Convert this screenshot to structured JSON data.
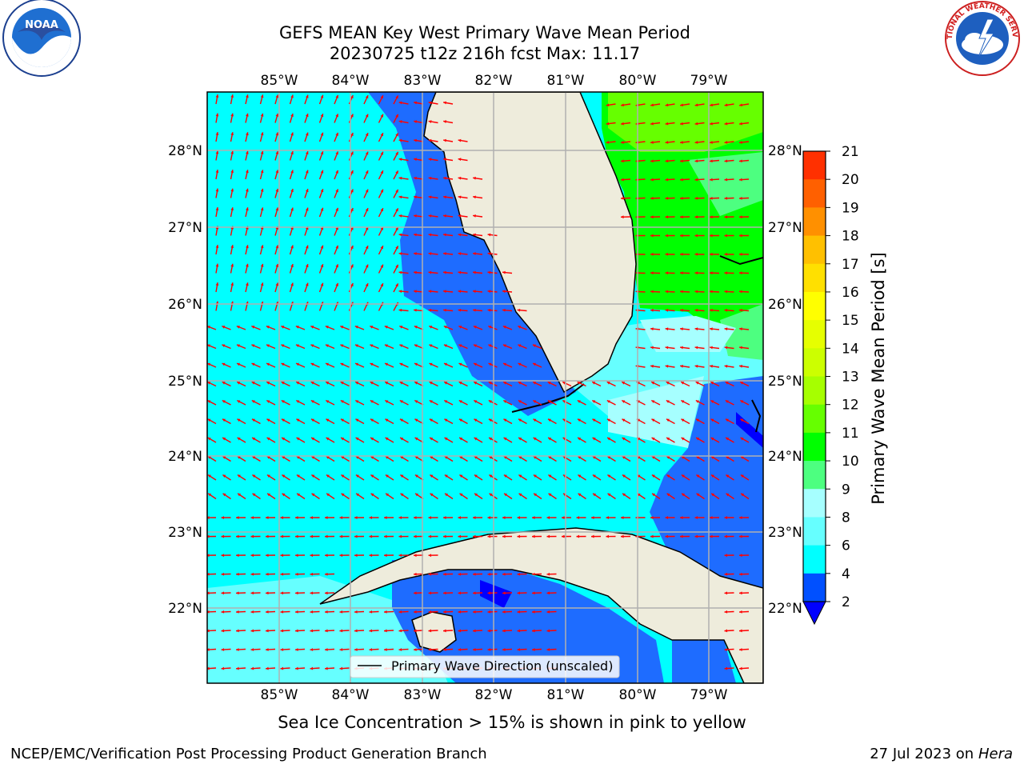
{
  "title_line1": "GEFS MEAN Key West Primary Wave Mean Period",
  "title_line2": "20230725 t12z 216h fcst   Max: 11.17",
  "logos": {
    "left": "NOAA",
    "right": "NATIONAL WEATHER SERVICE"
  },
  "map": {
    "lon_ticks": [
      "85°W",
      "84°W",
      "83°W",
      "82°W",
      "81°W",
      "80°W",
      "79°W"
    ],
    "lat_ticks": [
      "28°N",
      "27°N",
      "26°N",
      "25°N",
      "24°N",
      "23°N",
      "22°N"
    ],
    "legend_label": "Primary Wave Direction (unscaled)",
    "colors": {
      "land": "#eeecdc",
      "cyan": "#00ffff",
      "light_cyan": "#66ffff",
      "pale_cyan": "#a6ffff",
      "blue": "#1e6cff",
      "green": "#00ff00",
      "light_green": "#66ff66",
      "arrow": "#ff0000"
    }
  },
  "colorbar": {
    "label": "Primary Wave Mean Period [s]",
    "ticks": [
      "2",
      "4",
      "6",
      "8",
      "9",
      "10",
      "11",
      "12",
      "13",
      "14",
      "15",
      "16",
      "17",
      "18",
      "19",
      "20",
      "21"
    ],
    "colors": [
      "#0050ff",
      "#00ffff",
      "#66ffff",
      "#a6ffff",
      "#4dff80",
      "#00ff00",
      "#66ff00",
      "#a6ff00",
      "#ccff00",
      "#e6ff00",
      "#ffff00",
      "#ffe000",
      "#ffc000",
      "#ff9000",
      "#ff6000",
      "#ff3000",
      "#ff0000"
    ],
    "under_color": "#0000ff"
  },
  "ice_note": "Sea Ice Concentration > 15% is shown in pink to yellow",
  "footer_left": "NCEP/EMC/Verification Post Processing Product Generation Branch",
  "footer_right_prefix": "27 Jul 2023 on ",
  "footer_right_host": "Hera"
}
